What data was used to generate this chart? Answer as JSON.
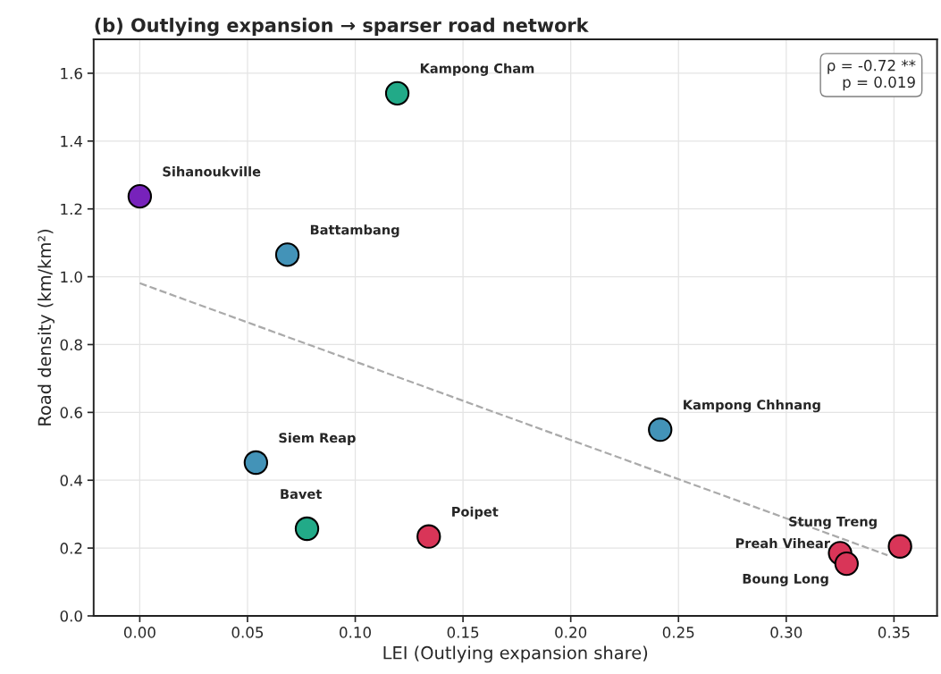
{
  "chart_data": {
    "type": "scatter",
    "title": "(b) Outlying expansion → sparser road network",
    "xlabel": "LEI (Outlying expansion share)",
    "ylabel": "Road density (km/km²)",
    "series": [
      {
        "x": [
          0.0,
          0.1195,
          0.0685,
          0.2415,
          0.0539,
          0.0776,
          0.1341,
          0.3528,
          0.325,
          0.328
        ],
        "values": [
          1.237,
          1.541,
          1.065,
          0.549,
          0.452,
          0.257,
          0.234,
          0.205,
          0.185,
          0.154
        ],
        "colors": [
          "#7722bb",
          "#22aa88",
          "#4393b8",
          "#4393b8",
          "#4393b8",
          "#22aa88",
          "#d93558",
          "#d93558",
          "#d93558",
          "#d93558"
        ],
        "marker": "circle"
      },
      {
        "type": "line",
        "x": [
          0.0,
          0.347
        ],
        "values": [
          0.981,
          0.179
        ],
        "color": "#aaaaaa",
        "line_style": "dashed"
      }
    ],
    "annotations": [
      {
        "text": "Sihanoukville",
        "x": 0.0,
        "y": 1.237
      },
      {
        "text": "Kampong Cham",
        "x": 0.1195,
        "y": 1.541
      },
      {
        "text": "Battambang",
        "x": 0.0685,
        "y": 1.065
      },
      {
        "text": "Kampong Chhnang",
        "x": 0.2415,
        "y": 0.549
      },
      {
        "text": "Siem Reap",
        "x": 0.0539,
        "y": 0.452
      },
      {
        "text": "Bavet",
        "x": 0.0776,
        "y": 0.257
      },
      {
        "text": "Poipet",
        "x": 0.1341,
        "y": 0.234
      },
      {
        "text": "Stung Treng",
        "x": 0.3528,
        "y": 0.205
      },
      {
        "text": "Preah Vihear",
        "x": 0.325,
        "y": 0.185
      },
      {
        "text": "Boung Long",
        "x": 0.328,
        "y": 0.154
      },
      "ρ = -0.72 **\np = 0.019"
    ],
    "xlim": [
      -0.0214,
      0.37
    ],
    "ylim": [
      0,
      1.7
    ],
    "xticks": [
      {
        "value": 0,
        "label": "0.00"
      },
      0.05,
      {
        "value": 0.1,
        "label": "0.10"
      },
      0.15,
      {
        "value": 0.2,
        "label": "0.20"
      },
      0.25,
      {
        "value": 0.3,
        "label": "0.30"
      },
      0.35
    ],
    "yticks": [
      {
        "value": 0,
        "label": "0.0"
      },
      0.2,
      0.4,
      0.6,
      0.8,
      {
        "value": 1,
        "label": "1.0"
      },
      1.2,
      1.4,
      1.6
    ],
    "grid": true
  }
}
